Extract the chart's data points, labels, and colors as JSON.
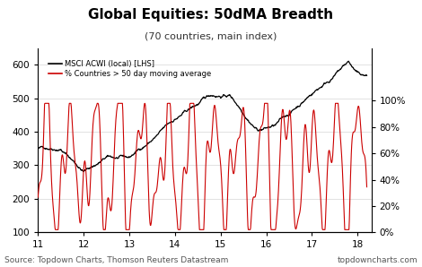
{
  "title": "Global Equities: 50dMA Breadth",
  "subtitle": "(70 countries, main index)",
  "source_left": "Source: Topdown Charts, Thomson Reuters Datastream",
  "source_right": "topdowncharts.com",
  "legend_black": "MSCI ACWI (local) [LHS]",
  "legend_red": "% Countries > 50 day moving average",
  "x_ticks": [
    11,
    12,
    13,
    14,
    15,
    16,
    17,
    18
  ],
  "xlim": [
    11.0,
    18.3
  ],
  "ylim_left": [
    100,
    650
  ],
  "ylim_right": [
    0,
    140
  ],
  "yticks_left": [
    100,
    200,
    300,
    400,
    500,
    600
  ],
  "yticks_right": [
    0,
    20,
    40,
    60,
    80,
    100
  ],
  "background_color": "#ffffff",
  "line_color_black": "#000000",
  "line_color_red": "#cc0000",
  "title_fontsize": 11,
  "subtitle_fontsize": 8,
  "tick_fontsize": 7.5,
  "source_fontsize": 6.5
}
